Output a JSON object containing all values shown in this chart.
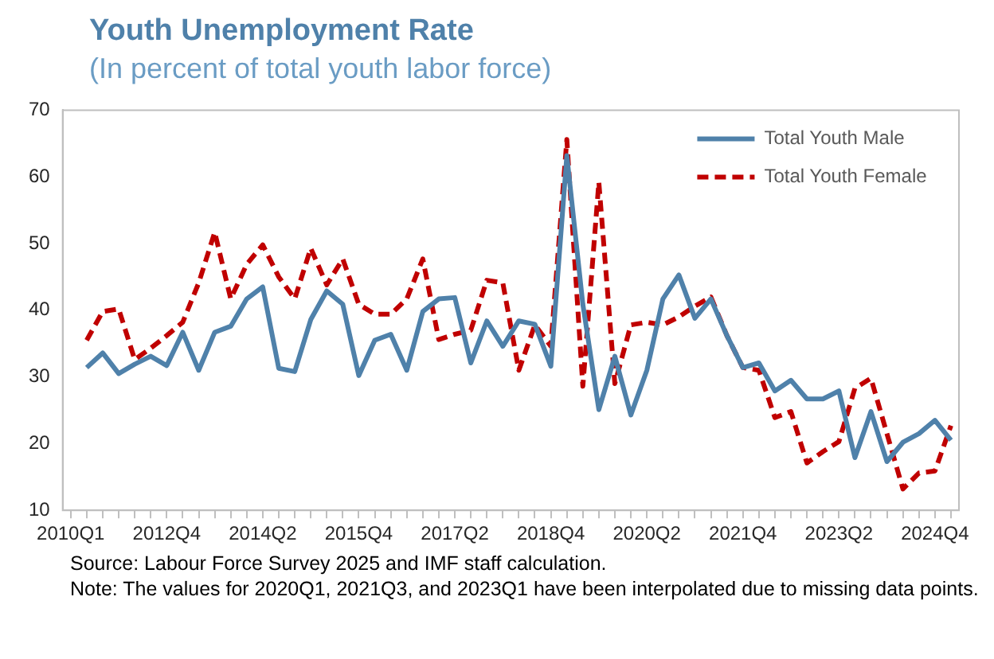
{
  "chart_data": {
    "type": "line",
    "title": "Youth Unemployment Rate",
    "subtitle": "(In percent of total youth labor force)",
    "categories": [
      "2010Q1",
      null,
      null,
      null,
      null,
      null,
      "2012Q4",
      null,
      null,
      null,
      null,
      null,
      "2014Q2",
      null,
      null,
      null,
      null,
      null,
      "2015Q4",
      null,
      null,
      null,
      null,
      null,
      "2017Q2",
      null,
      null,
      null,
      null,
      null,
      "2018Q4",
      null,
      null,
      null,
      null,
      null,
      "2020Q2",
      null,
      null,
      null,
      null,
      null,
      "2021Q4",
      null,
      null,
      null,
      null,
      null,
      "2023Q2",
      null,
      null,
      null,
      null,
      null,
      "2024Q4",
      null
    ],
    "series": [
      {
        "name": "Total Youth Male",
        "color": "#4f81aa",
        "line_style": "solid",
        "values": [
          null,
          31.4,
          33.6,
          30.5,
          31.9,
          33.1,
          31.7,
          36.7,
          31.0,
          36.7,
          37.6,
          41.7,
          43.5,
          31.3,
          30.8,
          38.6,
          42.9,
          40.9,
          30.2,
          35.5,
          36.4,
          31.0,
          39.8,
          41.7,
          41.9,
          32.1,
          38.4,
          34.6,
          38.4,
          37.9,
          31.6,
          63.2,
          40.9,
          25.1,
          33.1,
          24.3,
          31.0,
          41.7,
          45.3,
          38.8,
          41.7,
          36.2,
          31.4,
          32.1,
          27.9,
          29.5,
          26.7,
          26.7,
          27.9,
          17.9,
          24.8,
          17.3,
          20.2,
          21.5,
          23.5,
          20.5
        ]
      },
      {
        "name": "Total Youth Female",
        "color": "#c00000",
        "line_style": "dashed",
        "values": [
          null,
          35.5,
          39.8,
          40.2,
          32.6,
          34.3,
          36.2,
          38.2,
          44.1,
          51.7,
          41.7,
          46.9,
          49.8,
          45.0,
          41.7,
          49.3,
          43.8,
          47.7,
          40.9,
          39.4,
          39.4,
          41.7,
          47.7,
          35.6,
          36.4,
          37.0,
          44.5,
          44.1,
          31.0,
          37.8,
          34.6,
          65.6,
          28.6,
          59.2,
          29.0,
          37.8,
          38.2,
          37.8,
          39.0,
          40.6,
          42.0,
          36.2,
          31.4,
          31.0,
          23.9,
          24.8,
          17.1,
          18.8,
          20.3,
          28.3,
          29.8,
          21.5,
          13.2,
          15.6,
          15.9,
          22.7
        ]
      }
    ],
    "ylim": [
      10,
      70
    ],
    "yticks": [
      10,
      20,
      30,
      40,
      50,
      60,
      70
    ],
    "grid": false,
    "legend": "top right",
    "marker": "none",
    "annotations": [
      "Source: Labour Force Survey 2025 and IMF staff calculation.",
      "Note: The values for 2020Q1, 2021Q3, and 2023Q1 have been interpolated due to missing data points."
    ]
  }
}
